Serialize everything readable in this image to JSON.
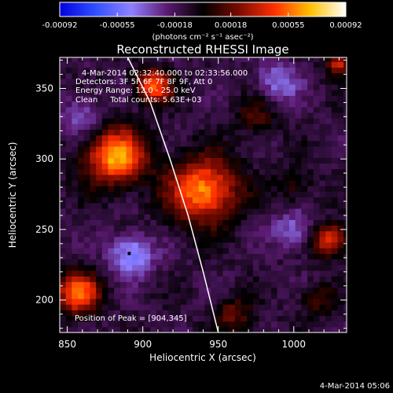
{
  "chart_data": {
    "type": "heatmap",
    "title": "Reconstructed RHESSI Image",
    "xlabel": "Heliocentric X (arcsec)",
    "ylabel": "Heliocentric Y (arcsec)",
    "xlim": [
      845,
      1035
    ],
    "ylim": [
      177,
      372
    ],
    "x_ticks": [
      850,
      900,
      950,
      1000
    ],
    "y_ticks": [
      200,
      250,
      300,
      350
    ],
    "colorbar": {
      "ticks": [
        "-0.00092",
        "-0.00055",
        "-0.00018",
        "0.00018",
        "0.00055",
        "0.00092"
      ],
      "tick_values": [
        -0.00092,
        -0.00055,
        -0.00018,
        0.00018,
        0.00055,
        0.00092
      ],
      "range": [
        -0.00092,
        0.00092
      ],
      "unit_label": "(photons cm⁻² s⁻¹ asec⁻²)",
      "colors": [
        "#0000e0",
        "#3050ff",
        "#9080ff",
        "#5a1a70",
        "#000000",
        "#7a0a00",
        "#ff3000",
        "#ffc000",
        "#ffffff"
      ]
    },
    "info_lines": [
      "4-Mar-2014 02:32:40.000  to 02:33:56.000",
      "Detectors: 3F 5F 6F 7F 8F 9F, Att 0",
      "Energy Range: 12.0 - 25.0 keV",
      "Clean     Total counts: 5.63E+03"
    ],
    "peak_text": "Position of Peak = [904,345]",
    "peak_position": [
      904,
      345
    ],
    "minimum_marker": [
      891,
      233
    ],
    "limb_curve": [
      [
        890,
        372
      ],
      [
        905,
        340
      ],
      [
        918,
        300
      ],
      [
        930,
        260
      ],
      [
        940,
        220
      ],
      [
        950,
        177
      ]
    ],
    "sources": [
      {
        "x": 882,
        "y": 302,
        "peak": 0.00078,
        "width": 14
      },
      {
        "x": 940,
        "y": 278,
        "peak": 0.00074,
        "width": 16
      },
      {
        "x": 907,
        "y": 352,
        "peak": 0.00066,
        "width": 8
      },
      {
        "x": 857,
        "y": 205,
        "peak": 0.0007,
        "width": 10
      },
      {
        "x": 1024,
        "y": 243,
        "peak": 0.0006,
        "width": 8
      },
      {
        "x": 1030,
        "y": 368,
        "peak": 0.0005,
        "width": 6
      },
      {
        "x": 975,
        "y": 330,
        "peak": 0.00025,
        "width": 9
      },
      {
        "x": 1000,
        "y": 280,
        "peak": 0.0002,
        "width": 9
      },
      {
        "x": 960,
        "y": 190,
        "peak": 0.0003,
        "width": 9
      },
      {
        "x": 1015,
        "y": 200,
        "peak": 0.00022,
        "width": 8
      },
      {
        "x": 893,
        "y": 232,
        "peak": -0.00045,
        "width": 10
      },
      {
        "x": 990,
        "y": 355,
        "peak": -0.0003,
        "width": 10
      },
      {
        "x": 1000,
        "y": 250,
        "peak": -0.00028,
        "width": 10
      },
      {
        "x": 860,
        "y": 330,
        "peak": -0.00025,
        "width": 10
      }
    ]
  },
  "timestamp": "4-Mar-2014 05:06"
}
